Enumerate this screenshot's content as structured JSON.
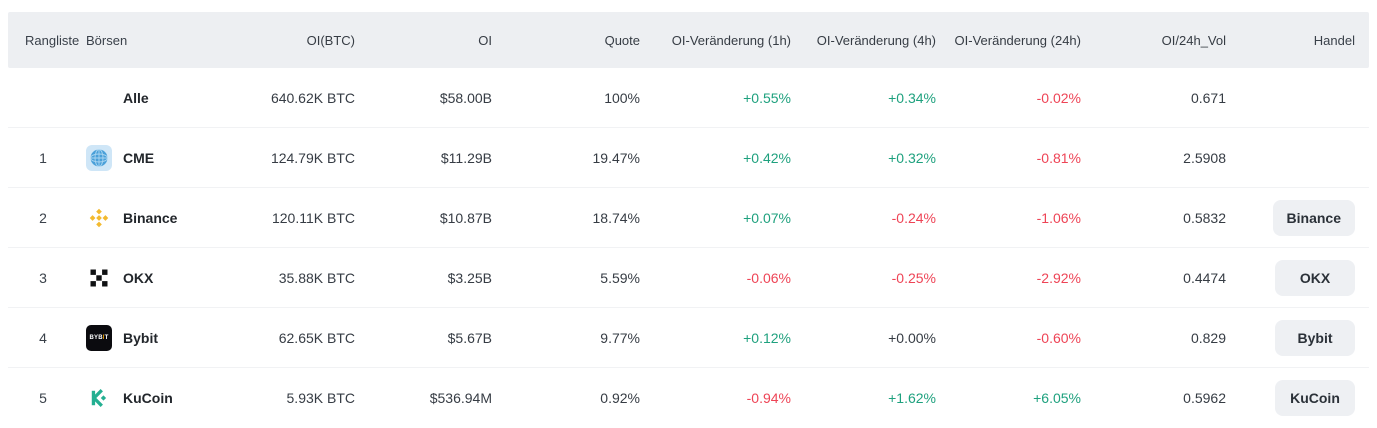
{
  "colors": {
    "up": "#1ea17e",
    "down": "#ee4456",
    "neutral": "#363c44",
    "header_bg": "#edeff2",
    "button_bg": "#eef0f3",
    "binance_yellow": "#f3ba2f",
    "bybit_orange": "#f7a600",
    "kucoin_green": "#23af91",
    "cme_blue": "#4aa0d9",
    "okx_black": "#101113"
  },
  "icons": {
    "bybit_text_parts": [
      "BYB",
      "I",
      "T"
    ]
  },
  "table": {
    "headers": [
      {
        "key": "rank",
        "label": "Rangliste"
      },
      {
        "key": "ex",
        "label": "Börsen"
      },
      {
        "key": "oibtc",
        "label": "OI(BTC)"
      },
      {
        "key": "oi",
        "label": "OI"
      },
      {
        "key": "quote",
        "label": "Quote"
      },
      {
        "key": "chg1h",
        "label": "OI-Veränderung (1h)"
      },
      {
        "key": "chg4h",
        "label": "OI-Veränderung (4h)"
      },
      {
        "key": "chg24h",
        "label": "OI-Veränderung (24h)"
      },
      {
        "key": "oivol",
        "label": "OI/24h_Vol"
      },
      {
        "key": "trade",
        "label": "Handel"
      }
    ],
    "rows": [
      {
        "rank": "",
        "name": "Alle",
        "icon": "none",
        "oi_btc": "640.62K BTC",
        "oi": "$58.00B",
        "quote": "100%",
        "chg_1h": "+0.55%",
        "chg_1h_dir": "up",
        "chg_4h": "+0.34%",
        "chg_4h_dir": "up",
        "chg_24h": "-0.02%",
        "chg_24h_dir": "down",
        "oi_24h_vol": "0.671",
        "trade_button": null
      },
      {
        "rank": "1",
        "name": "CME",
        "icon": "cme",
        "oi_btc": "124.79K BTC",
        "oi": "$11.29B",
        "quote": "19.47%",
        "chg_1h": "+0.42%",
        "chg_1h_dir": "up",
        "chg_4h": "+0.32%",
        "chg_4h_dir": "up",
        "chg_24h": "-0.81%",
        "chg_24h_dir": "down",
        "oi_24h_vol": "2.5908",
        "trade_button": null
      },
      {
        "rank": "2",
        "name": "Binance",
        "icon": "binance",
        "oi_btc": "120.11K BTC",
        "oi": "$10.87B",
        "quote": "18.74%",
        "chg_1h": "+0.07%",
        "chg_1h_dir": "up",
        "chg_4h": "-0.24%",
        "chg_4h_dir": "down",
        "chg_24h": "-1.06%",
        "chg_24h_dir": "down",
        "oi_24h_vol": "0.5832",
        "trade_button": "Binance"
      },
      {
        "rank": "3",
        "name": "OKX",
        "icon": "okx",
        "oi_btc": "35.88K BTC",
        "oi": "$3.25B",
        "quote": "5.59%",
        "chg_1h": "-0.06%",
        "chg_1h_dir": "down",
        "chg_4h": "-0.25%",
        "chg_4h_dir": "down",
        "chg_24h": "-2.92%",
        "chg_24h_dir": "down",
        "oi_24h_vol": "0.4474",
        "trade_button": "OKX"
      },
      {
        "rank": "4",
        "name": "Bybit",
        "icon": "bybit",
        "oi_btc": "62.65K BTC",
        "oi": "$5.67B",
        "quote": "9.77%",
        "chg_1h": "+0.12%",
        "chg_1h_dir": "up",
        "chg_4h": "+0.00%",
        "chg_4h_dir": "neutral",
        "chg_24h": "-0.60%",
        "chg_24h_dir": "down",
        "oi_24h_vol": "0.829",
        "trade_button": "Bybit"
      },
      {
        "rank": "5",
        "name": "KuCoin",
        "icon": "kucoin",
        "oi_btc": "5.93K BTC",
        "oi": "$536.94M",
        "quote": "0.92%",
        "chg_1h": "-0.94%",
        "chg_1h_dir": "down",
        "chg_4h": "+1.62%",
        "chg_4h_dir": "up",
        "chg_24h": "+6.05%",
        "chg_24h_dir": "up",
        "oi_24h_vol": "0.5962",
        "trade_button": "KuCoin"
      }
    ]
  }
}
